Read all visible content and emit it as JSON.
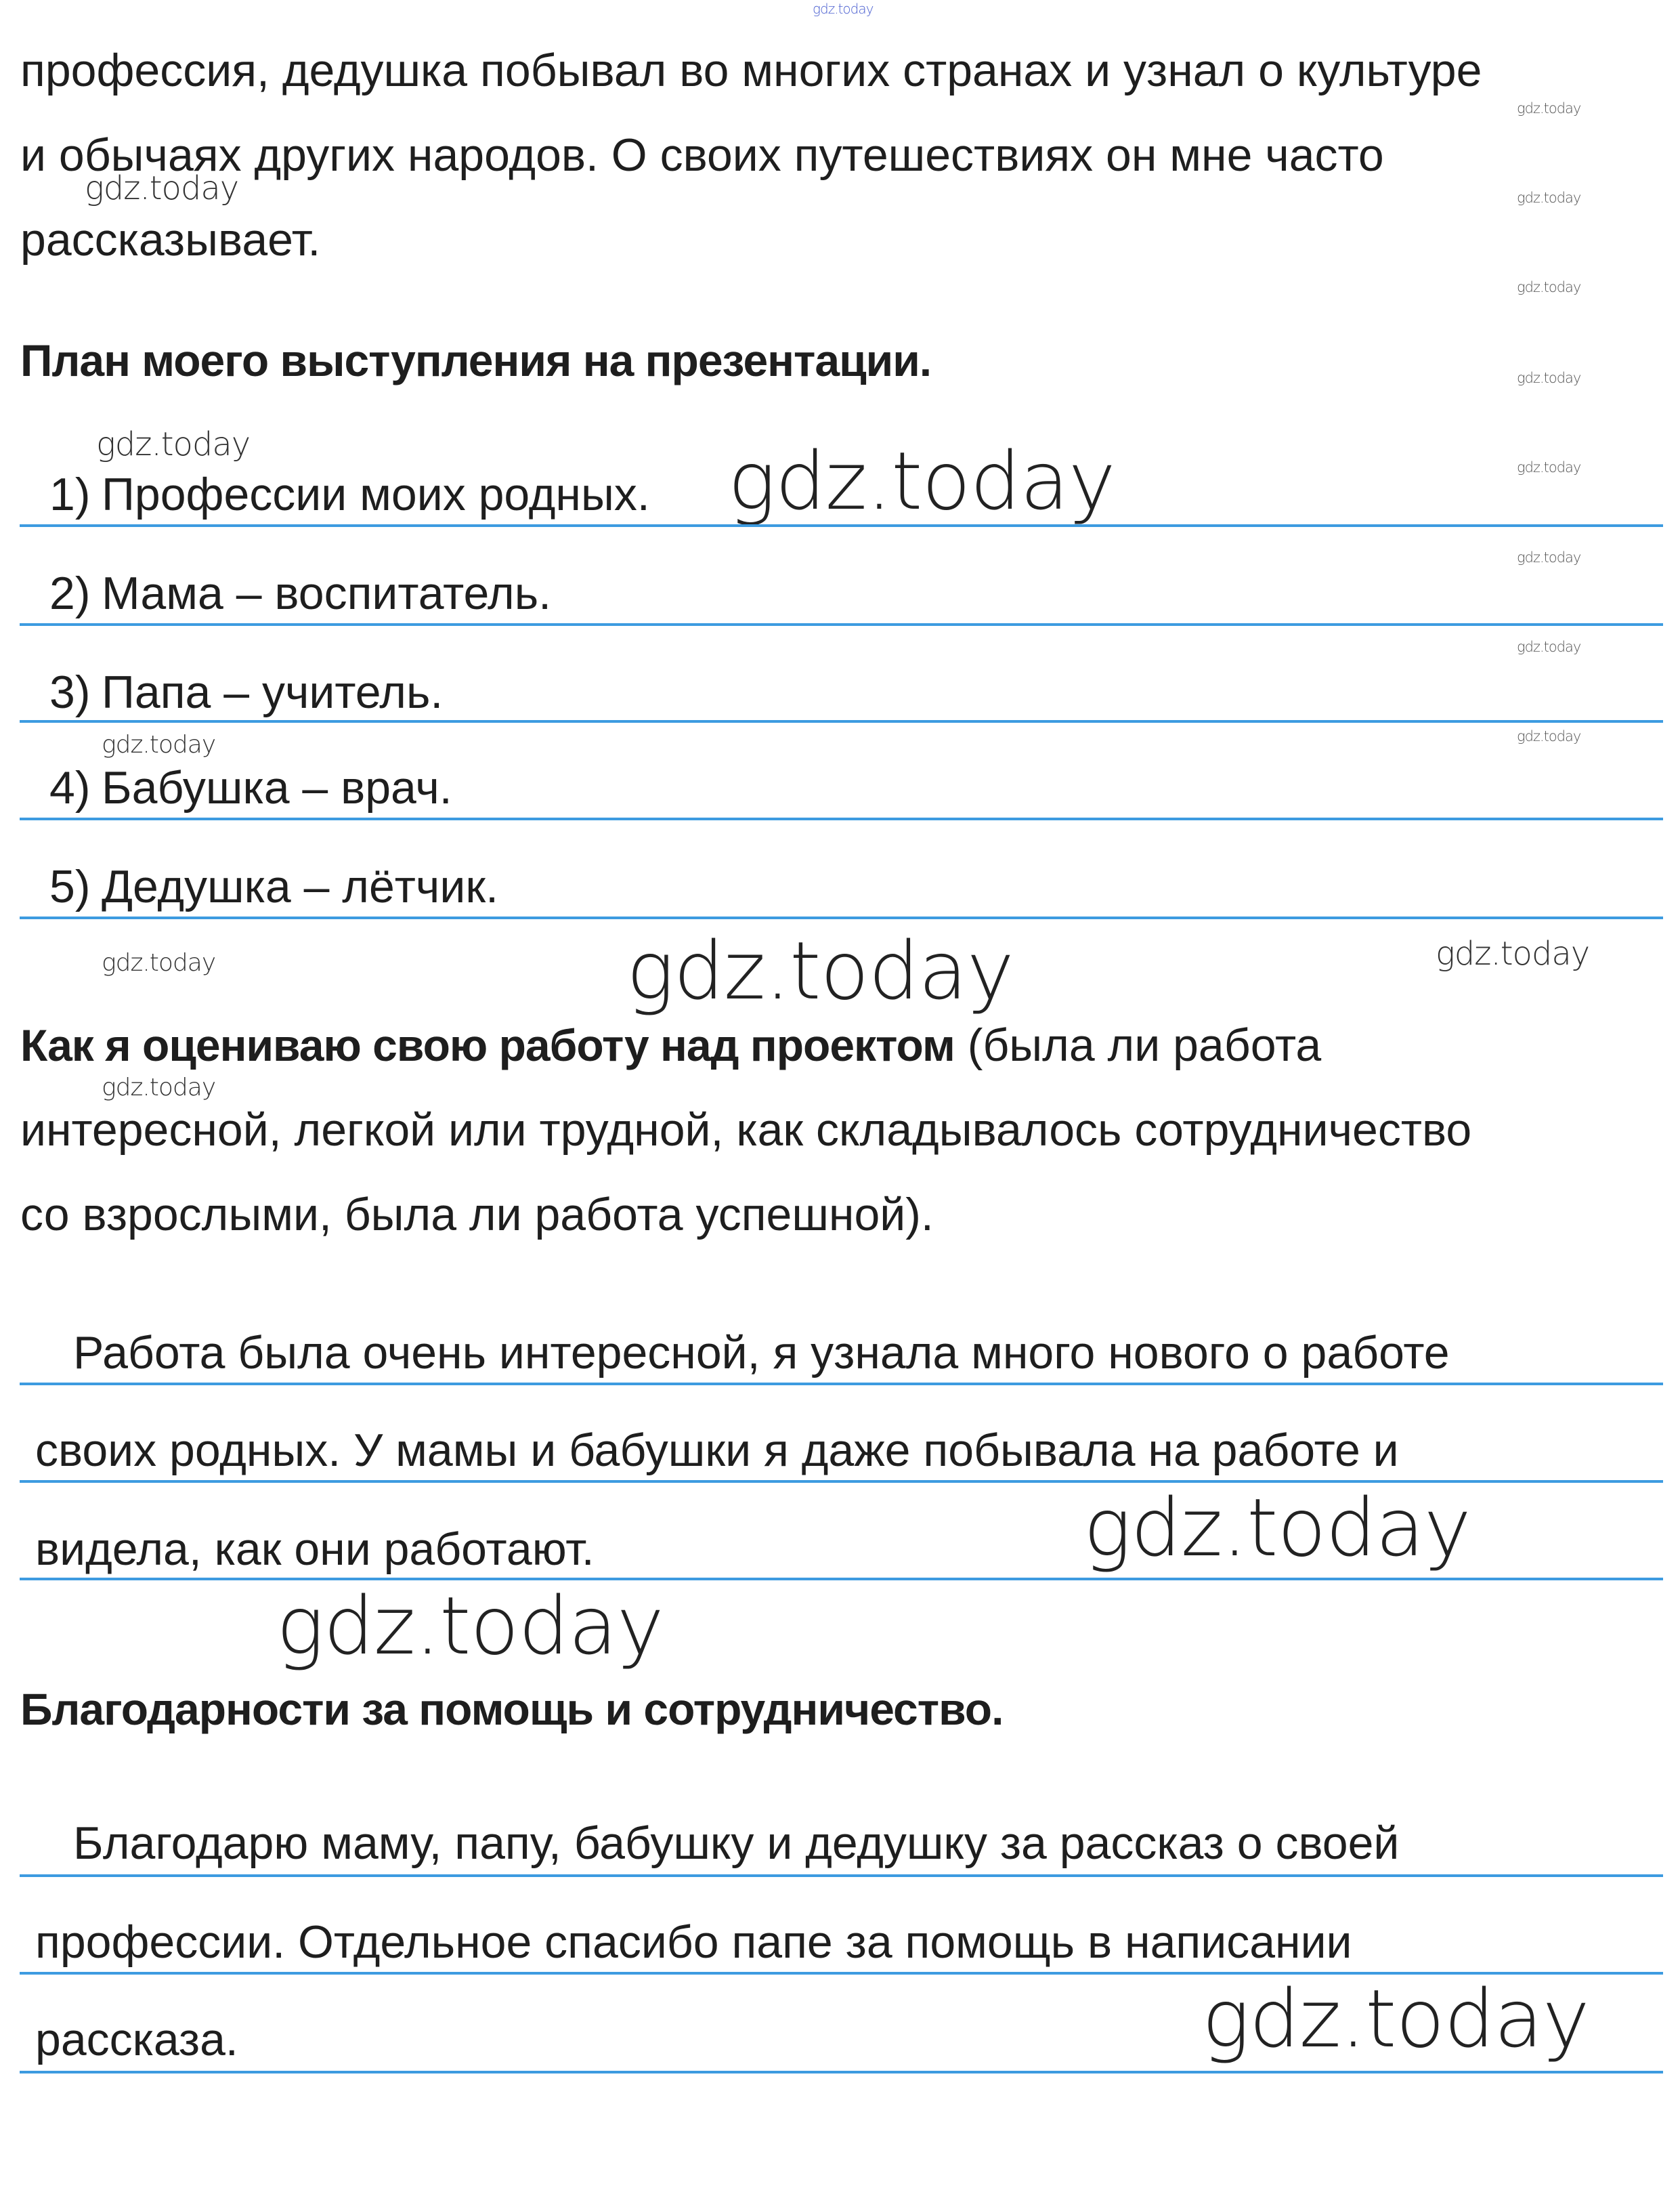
{
  "intro": [
    "профессия, дедушка побывал во многих странах и узнал о культуре",
    "и обычаях других народов. О своих путешествиях он мне часто",
    "рассказывает."
  ],
  "plan": {
    "heading": "План моего выступления на презентации.",
    "items": [
      {
        "num": "1)",
        "text": "Профессии моих родных."
      },
      {
        "num": "2)",
        "text": "Мама – воспитатель."
      },
      {
        "num": "3)",
        "text": "Папа – учитель."
      },
      {
        "num": "4)",
        "text": "Бабушка – врач."
      },
      {
        "num": "5)",
        "text": "Дедушка – лётчик."
      }
    ]
  },
  "evaluation": {
    "heading_bold": "Как я оцениваю свою работу над проектом",
    "heading_rest": " (была ли работа",
    "heading_lines": [
      "интересной, легкой или трудной, как складывалось сотрудничество",
      "со взрослыми, была ли работа успешной)."
    ],
    "answer": [
      "Работа была очень интересной, я узнала много нового о работе",
      "своих родных. У мамы и бабушки я даже побывала на работе и",
      "видела, как они работают."
    ]
  },
  "thanks": {
    "heading": "Благодарности за помощь и сотрудничество.",
    "answer": [
      "Благодарю маму, папу, бабушку и дедушку за рассказ о своей",
      "профессии. Отдельное спасибо папе за помощь в написании",
      "рассказа."
    ]
  },
  "watermark": "gdz.today",
  "colors": {
    "rule": "#3d9be0",
    "text": "#1e1e1e"
  }
}
